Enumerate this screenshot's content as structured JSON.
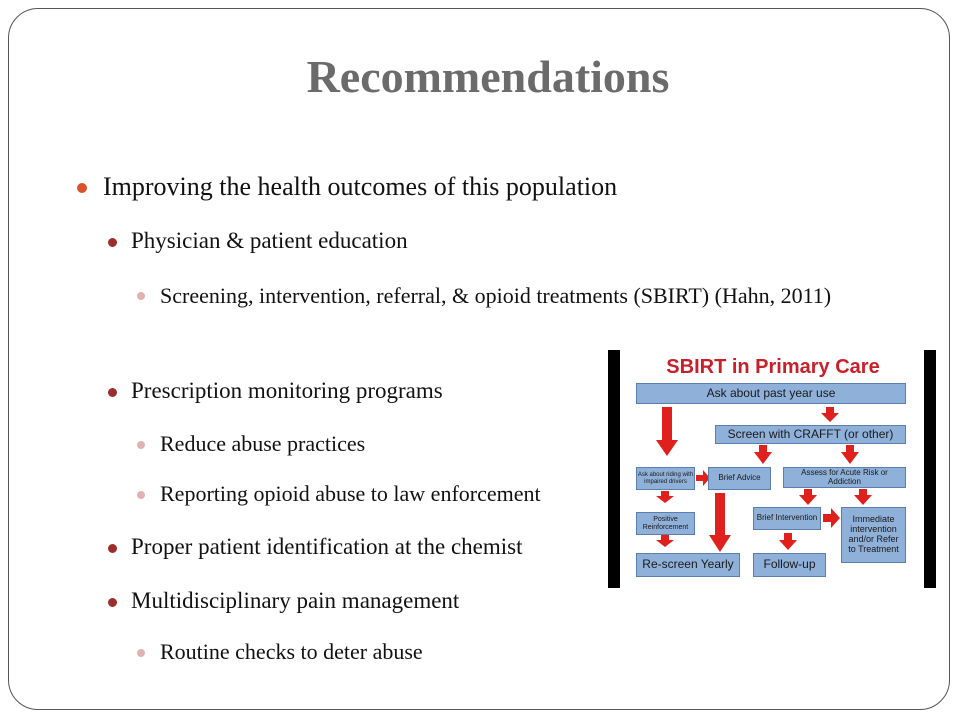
{
  "slide": {
    "title": "Recommendations",
    "bullets": [
      {
        "level": 1,
        "text": "Improving the health outcomes of this population"
      },
      {
        "level": 2,
        "text": "Physician & patient education"
      },
      {
        "level": 3,
        "text": "Screening, intervention, referral, & opioid treatments (SBIRT) (Hahn, 2011)"
      },
      {
        "level": 2,
        "text": "Prescription monitoring programs"
      },
      {
        "level": 3,
        "text": "Reduce abuse practices"
      },
      {
        "level": 3,
        "text": "Reporting opioid abuse to law enforcement"
      },
      {
        "level": 2,
        "text": "Proper patient identification at the chemist"
      },
      {
        "level": 2,
        "text": "Multidisciplinary pain management"
      },
      {
        "level": 3,
        "text": "Routine checks to deter abuse"
      }
    ],
    "bullet_colors": {
      "level1": "#d9542a",
      "level2": "#9b2d2d",
      "level3": "#e2b2b2"
    }
  },
  "diagram": {
    "title": "SBIRT in Primary Care",
    "boxes": {
      "ask": "Ask about past year use",
      "crafft": "Screen with CRAFFT (or other)",
      "riding": "Ask about riding with impaired drivers",
      "brief_advice": "Brief Advice",
      "assess": "Assess for Acute Risk or Addiction",
      "positive": "Positive Reinforcement",
      "brief_intervention": "Brief Intervention",
      "immediate": "Immediate intervention and/or Refer to Treatment",
      "rescreen": "Re-screen Yearly",
      "followup": "Follow-up"
    },
    "colors": {
      "box": "#8fb0d8",
      "arrow": "#e0201c",
      "title": "#c8202a"
    }
  }
}
